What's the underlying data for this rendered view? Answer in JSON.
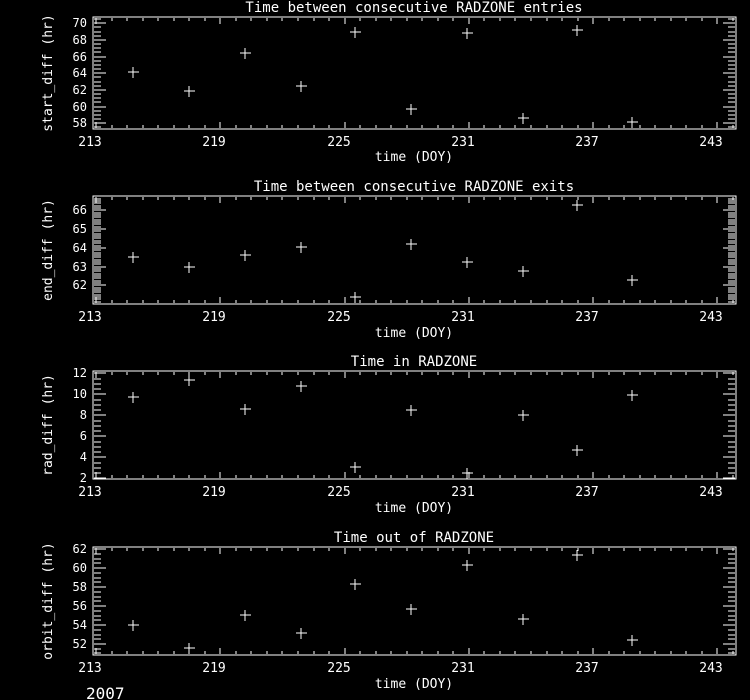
{
  "colors": {
    "background": "#000000",
    "foreground": "#ffffff"
  },
  "footer": {
    "year": "2007"
  },
  "x_axis": {
    "label": "time (DOY)",
    "ticks": [
      213,
      219,
      225,
      231,
      237,
      243
    ],
    "range": [
      212.85,
      243.9
    ],
    "minor_step": 0.75
  },
  "chart_data": [
    {
      "type": "scatter",
      "title": "Time between consecutive RADZONE entries",
      "xlabel": "time (DOY)",
      "ylabel": "start_diff (hr)",
      "marker": "plus",
      "legend": "none",
      "grid": false,
      "x": [
        214.8,
        217.5,
        220.2,
        222.9,
        225.5,
        228.2,
        230.9,
        233.6,
        236.2,
        238.9
      ],
      "y": [
        64.1,
        61.9,
        66.4,
        62.5,
        68.9,
        59.7,
        68.8,
        58.6,
        69.2,
        58.1
      ],
      "ylim": [
        57.3,
        70.75
      ],
      "yticks": [
        58,
        60,
        62,
        64,
        66,
        68,
        70
      ],
      "y_minor_step": 0.5
    },
    {
      "type": "scatter",
      "title": "Time between consecutive RADZONE exits",
      "xlabel": "time (DOY)",
      "ylabel": "end_diff (hr)",
      "marker": "plus",
      "legend": "none",
      "grid": false,
      "x": [
        214.8,
        217.5,
        220.2,
        222.9,
        225.5,
        228.2,
        230.9,
        233.6,
        236.2,
        238.9
      ],
      "y": [
        63.5,
        63.0,
        63.6,
        64.05,
        61.4,
        64.2,
        63.25,
        62.75,
        66.3,
        62.3
      ],
      "ylim": [
        61.0,
        66.77
      ],
      "yticks": [
        62,
        63,
        64,
        65,
        66
      ],
      "y_minor_step": 0.125
    },
    {
      "type": "scatter",
      "title": "Time in RADZONE",
      "xlabel": "time (DOY)",
      "ylabel": "rad_diff (hr)",
      "marker": "plus",
      "legend": "none",
      "grid": false,
      "x": [
        214.8,
        217.5,
        220.2,
        222.9,
        225.5,
        228.2,
        230.9,
        233.6,
        236.2,
        238.9
      ],
      "y": [
        9.7,
        11.35,
        8.6,
        10.8,
        3.05,
        8.5,
        2.5,
        8.0,
        4.7,
        9.9
      ],
      "ylim": [
        1.93,
        12.22
      ],
      "yticks": [
        2,
        4,
        6,
        8,
        10,
        12
      ],
      "y_minor_step": 0.5
    },
    {
      "type": "scatter",
      "title": "Time out of RADZONE",
      "xlabel": "time (DOY)",
      "ylabel": "orbit_diff (hr)",
      "marker": "plus",
      "legend": "none",
      "grid": false,
      "x": [
        214.8,
        217.5,
        220.2,
        222.9,
        225.5,
        228.2,
        230.9,
        233.6,
        236.2,
        238.9
      ],
      "y": [
        54.0,
        51.6,
        55.05,
        53.2,
        58.3,
        55.65,
        60.35,
        54.65,
        61.35,
        52.4
      ],
      "ylim": [
        50.84,
        62.24
      ],
      "yticks": [
        52,
        54,
        56,
        58,
        60,
        62
      ],
      "y_minor_step": 0.5
    }
  ]
}
